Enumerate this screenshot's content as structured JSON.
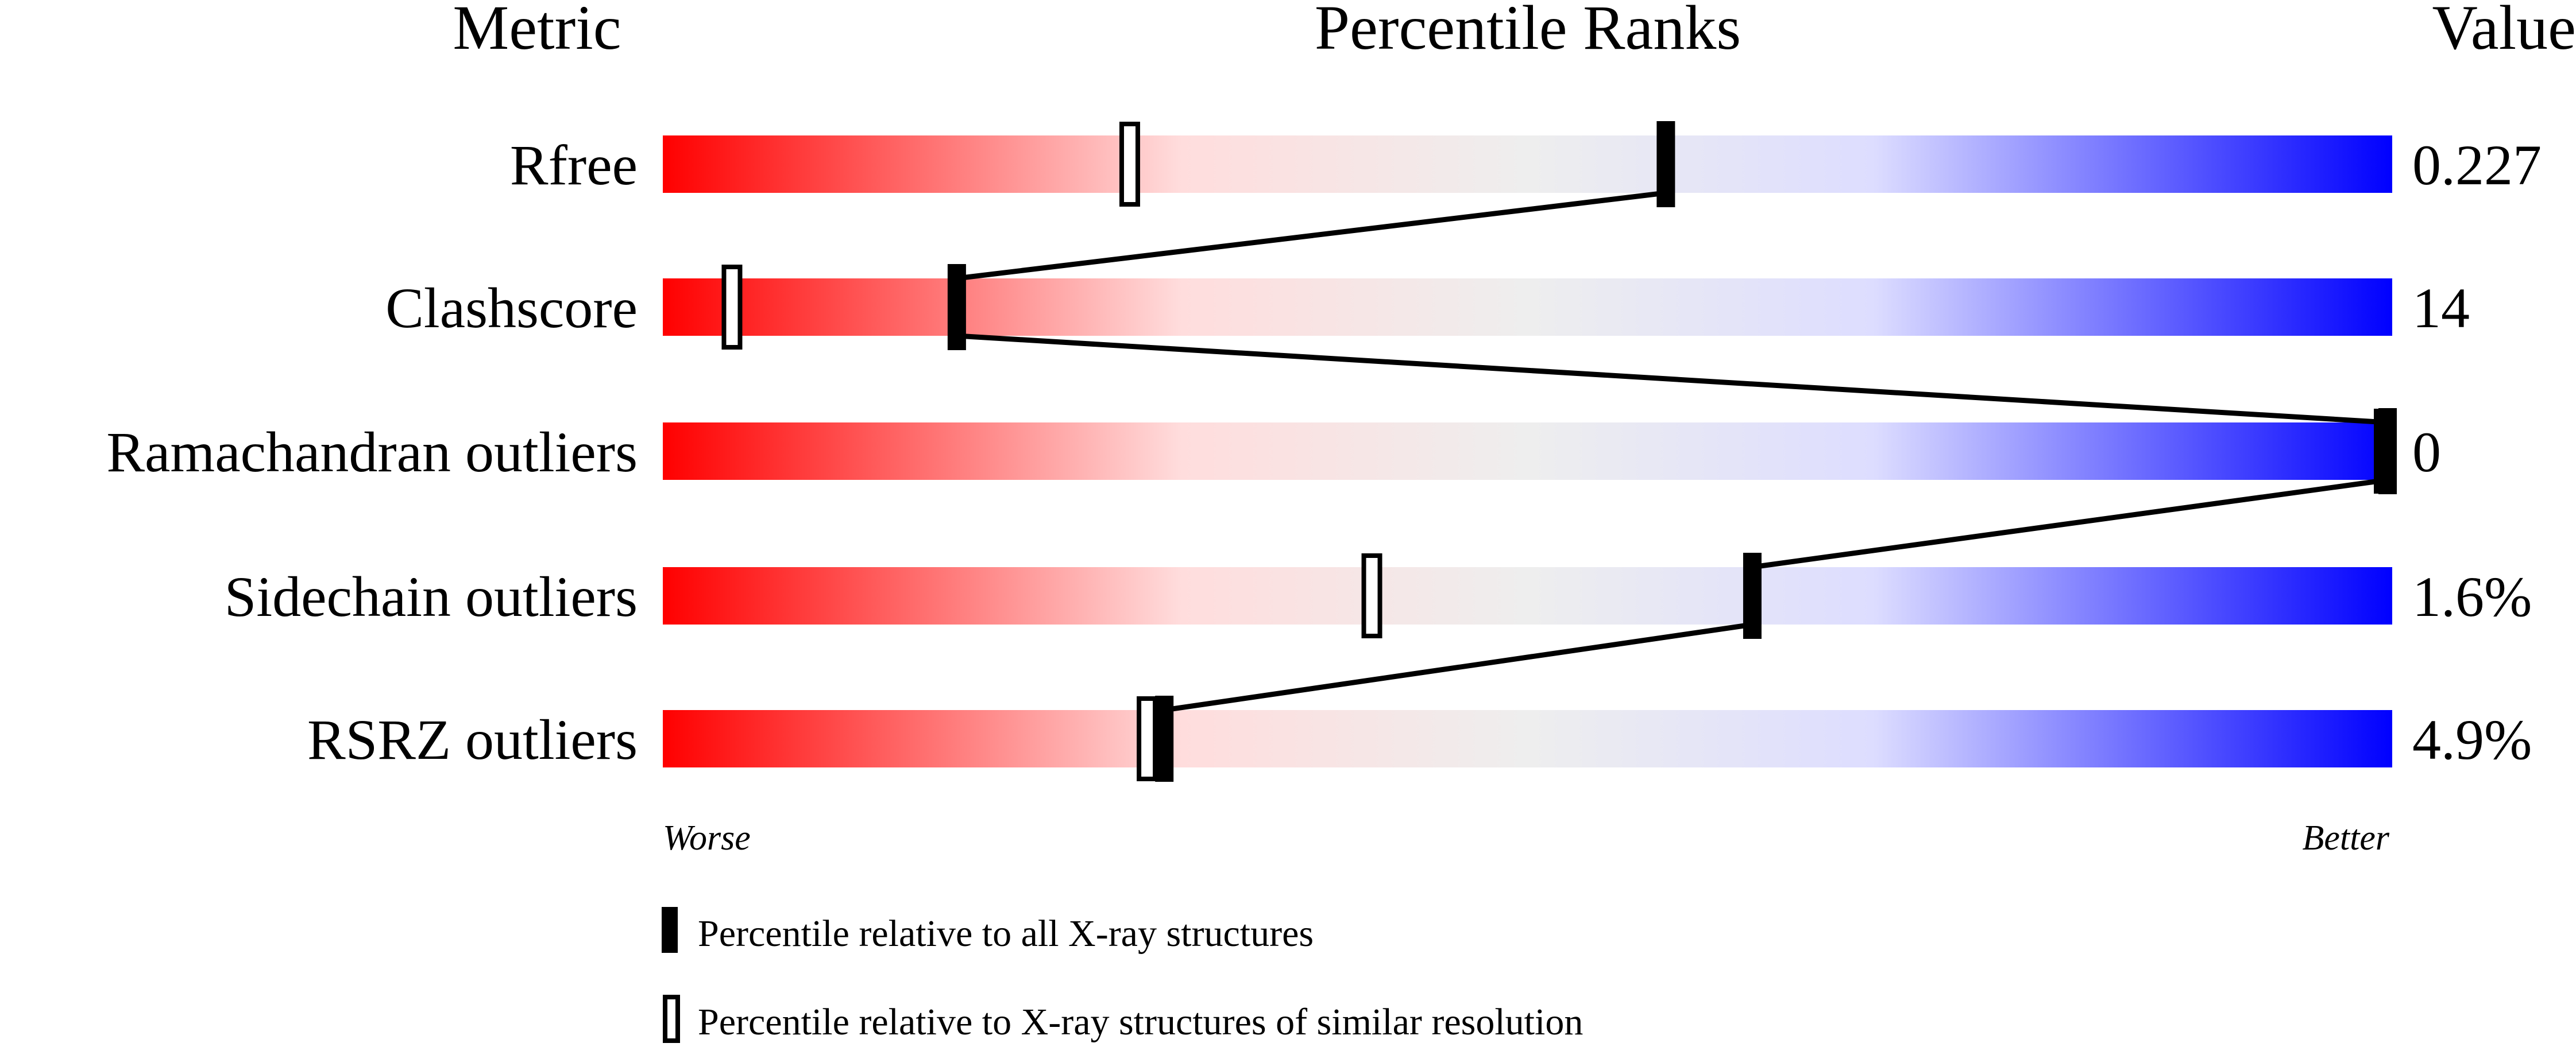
{
  "chart_data": {
    "type": "bar",
    "headers": {
      "metric": "Metric",
      "ranks": "Percentile Ranks",
      "value": "Value"
    },
    "xlim": [
      0,
      100
    ],
    "axis_labels": {
      "left": "Worse",
      "right": "Better"
    },
    "gradient_colors": [
      "#ff0000",
      "#ffdddd",
      "#eeeeee",
      "#ddddff",
      "#0000ff"
    ],
    "rows": [
      {
        "metric": "Rfree",
        "value": "0.227",
        "percentile_all": 58,
        "percentile_similar": 27
      },
      {
        "metric": "Clashscore",
        "value": "14",
        "percentile_all": 17,
        "percentile_similar": 4
      },
      {
        "metric": "Ramachandran outliers",
        "value": "0",
        "percentile_all": 100,
        "percentile_similar": 100
      },
      {
        "metric": "Sidechain outliers",
        "value": "1.6%",
        "percentile_all": 63,
        "percentile_similar": 41
      },
      {
        "metric": "RSRZ outliers",
        "value": "4.9%",
        "percentile_all": 29,
        "percentile_similar": 28
      }
    ],
    "legend": [
      {
        "marker": "filled",
        "label": "Percentile relative to all X-ray structures"
      },
      {
        "marker": "open",
        "label": "Percentile relative to X-ray structures of similar resolution"
      }
    ]
  }
}
